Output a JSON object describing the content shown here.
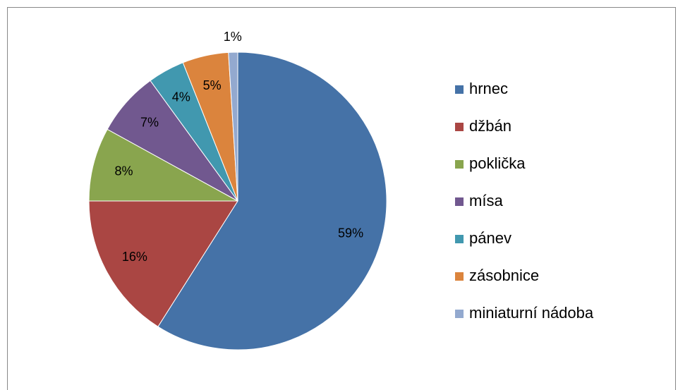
{
  "chart_data": {
    "type": "pie",
    "categories": [
      "hrnec",
      "džbán",
      "poklička",
      "mísa",
      "pánev",
      "zásobnice",
      "miniaturní nádoba"
    ],
    "values": [
      59,
      16,
      8,
      7,
      4,
      5,
      1
    ],
    "value_labels": [
      "59%",
      "16%",
      "8%",
      "7%",
      "4%",
      "5%",
      "1%"
    ],
    "colors": [
      "#4572a7",
      "#aa4643",
      "#89a54e",
      "#71588f",
      "#4198af",
      "#db843d",
      "#93a9cf"
    ],
    "legend": "right"
  }
}
